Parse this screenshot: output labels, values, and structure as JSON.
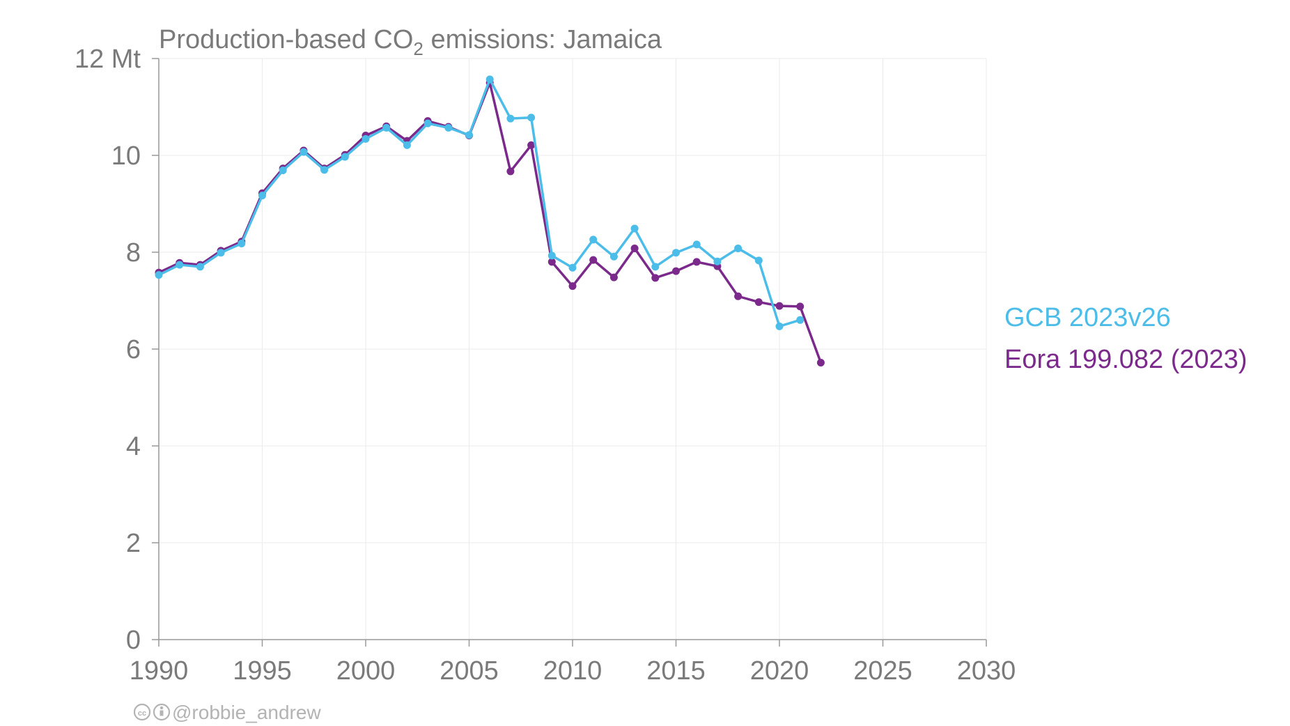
{
  "chart_data": {
    "type": "line",
    "title_main": "Production-based CO",
    "title_sub": "2",
    "title_rest": " emissions: Jamaica",
    "y_unit_label": "12 Mt",
    "xlim": [
      1990,
      2030
    ],
    "ylim": [
      0,
      12
    ],
    "x_ticks": [
      1990,
      1995,
      2000,
      2005,
      2010,
      2015,
      2020,
      2025,
      2030
    ],
    "y_ticks": [
      0,
      2,
      4,
      6,
      8,
      10,
      12
    ],
    "y_tick_labels": [
      "0",
      "2",
      "4",
      "6",
      "8",
      "10",
      "12 Mt"
    ],
    "grid": true,
    "legend_position": "right",
    "series": [
      {
        "name": "Eora 199.082 (2023)",
        "color": "#7b2a8c",
        "x": [
          1990,
          1991,
          1992,
          1993,
          1994,
          1995,
          1996,
          1997,
          1998,
          1999,
          2000,
          2001,
          2002,
          2003,
          2004,
          2005,
          2006,
          2007,
          2008,
          2009,
          2010,
          2011,
          2012,
          2013,
          2014,
          2015,
          2016,
          2017,
          2018,
          2019,
          2020,
          2021,
          2022
        ],
        "values": [
          7.58,
          7.78,
          7.74,
          8.03,
          8.22,
          9.22,
          9.73,
          10.1,
          9.73,
          10.01,
          10.41,
          10.6,
          10.3,
          10.71,
          10.59,
          10.41,
          11.5,
          9.67,
          10.21,
          7.8,
          7.3,
          7.84,
          7.48,
          8.08,
          7.47,
          7.61,
          7.8,
          7.71,
          7.09,
          6.97,
          6.89,
          6.88,
          5.72
        ]
      },
      {
        "name": "GCB 2023v26",
        "color": "#4bbde8",
        "x": [
          1990,
          1991,
          1992,
          1993,
          1994,
          1995,
          1996,
          1997,
          1998,
          1999,
          2000,
          2001,
          2002,
          2003,
          2004,
          2005,
          2006,
          2007,
          2008,
          2009,
          2010,
          2011,
          2012,
          2013,
          2014,
          2015,
          2016,
          2017,
          2018,
          2019,
          2020,
          2021
        ],
        "values": [
          7.53,
          7.74,
          7.7,
          7.99,
          8.18,
          9.17,
          9.69,
          10.07,
          9.7,
          9.97,
          10.34,
          10.57,
          10.21,
          10.66,
          10.57,
          10.42,
          11.57,
          10.76,
          10.78,
          7.93,
          7.68,
          8.26,
          7.91,
          8.49,
          7.7,
          7.99,
          8.16,
          7.81,
          8.08,
          7.83,
          6.47,
          6.6
        ]
      }
    ]
  },
  "credit": {
    "icons": [
      "cc-icon",
      "attribution-icon"
    ],
    "handle": "@robbie_andrew"
  }
}
